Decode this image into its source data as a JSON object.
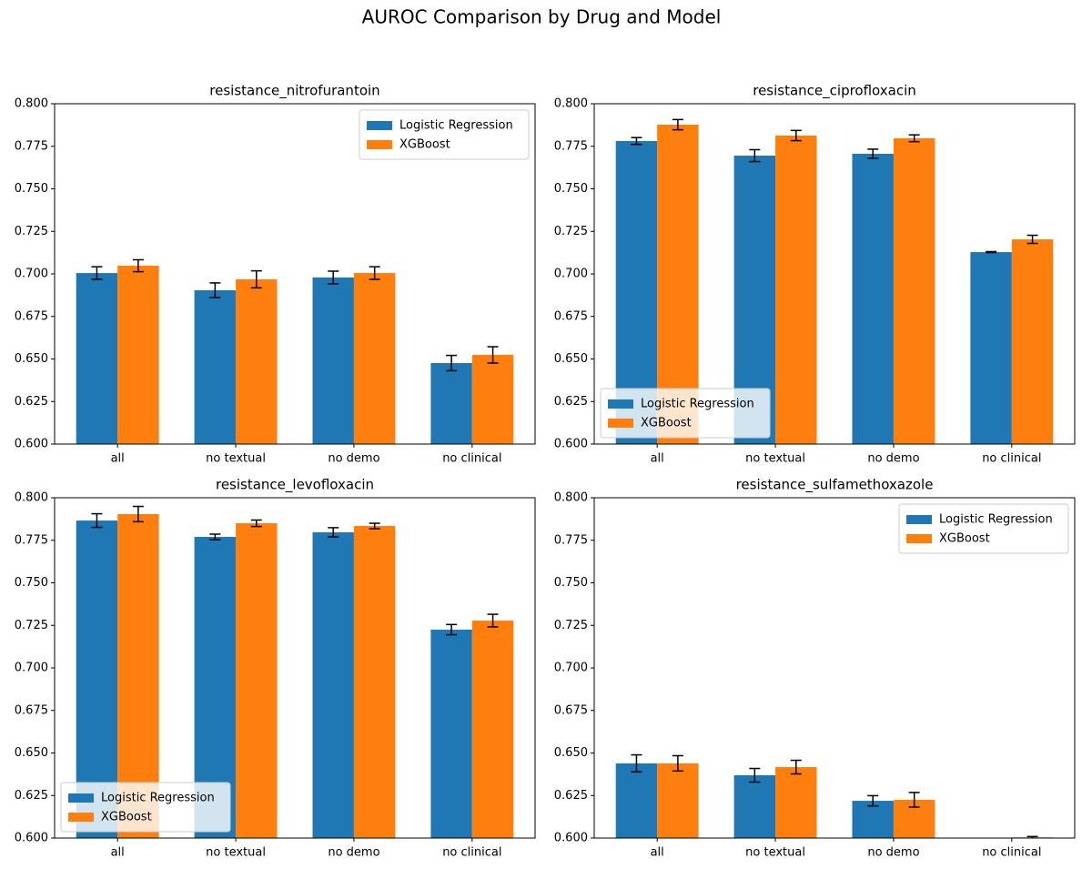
{
  "title": "AUROC Comparison by Drug and Model",
  "chart_data": [
    {
      "type": "bar",
      "title": "resistance_nitrofurantoin",
      "categories": [
        "all",
        "no textual",
        "no demo",
        "no clinical"
      ],
      "series": [
        {
          "name": "Logistic Regression",
          "color": "#1f77b4",
          "values": [
            0.7005,
            0.6904,
            0.6979,
            0.6476
          ],
          "errors": [
            0.0037,
            0.0043,
            0.0037,
            0.0045
          ]
        },
        {
          "name": "XGBoost",
          "color": "#ff7f0e",
          "values": [
            0.7048,
            0.6968,
            0.7005,
            0.6524
          ],
          "errors": [
            0.0035,
            0.005,
            0.0037,
            0.0048
          ]
        }
      ],
      "ylim": [
        0.6,
        0.8
      ],
      "yticks": [
        {
          "value": 0.6,
          "label": "0.600"
        },
        {
          "value": 0.625,
          "label": "0.625"
        },
        {
          "value": 0.65,
          "label": "0.650"
        },
        {
          "value": 0.675,
          "label": "0.675"
        },
        {
          "value": 0.7,
          "label": "0.700"
        },
        {
          "value": 0.725,
          "label": "0.725"
        },
        {
          "value": 0.75,
          "label": "0.750"
        },
        {
          "value": 0.775,
          "label": "0.775"
        },
        {
          "value": 0.8,
          "label": "0.800"
        }
      ],
      "legend": "upper right"
    },
    {
      "type": "bar",
      "title": "resistance_ciprofloxacin",
      "categories": [
        "all",
        "no textual",
        "no demo",
        "no clinical"
      ],
      "series": [
        {
          "name": "Logistic Regression",
          "color": "#1f77b4",
          "values": [
            0.7781,
            0.7695,
            0.7706,
            0.7128
          ],
          "errors": [
            0.002,
            0.0035,
            0.0027,
            0.0003
          ]
        },
        {
          "name": "XGBoost",
          "color": "#ff7f0e",
          "values": [
            0.7877,
            0.7813,
            0.7797,
            0.7203
          ],
          "errors": [
            0.003,
            0.003,
            0.002,
            0.0024
          ]
        }
      ],
      "ylim": [
        0.6,
        0.8
      ],
      "yticks": [
        {
          "value": 0.6,
          "label": "0.600"
        },
        {
          "value": 0.625,
          "label": "0.625"
        },
        {
          "value": 0.65,
          "label": "0.650"
        },
        {
          "value": 0.675,
          "label": "0.675"
        },
        {
          "value": 0.7,
          "label": "0.700"
        },
        {
          "value": 0.725,
          "label": "0.725"
        },
        {
          "value": 0.75,
          "label": "0.750"
        },
        {
          "value": 0.775,
          "label": "0.775"
        },
        {
          "value": 0.8,
          "label": "0.800"
        }
      ],
      "legend": "lower left"
    },
    {
      "type": "bar",
      "title": "resistance_levofloxacin",
      "categories": [
        "all",
        "no textual",
        "no demo",
        "no clinical"
      ],
      "series": [
        {
          "name": "Logistic Regression",
          "color": "#1f77b4",
          "values": [
            0.7866,
            0.777,
            0.7797,
            0.7225
          ],
          "errors": [
            0.004,
            0.0016,
            0.0027,
            0.003
          ]
        },
        {
          "name": "XGBoost",
          "color": "#ff7f0e",
          "values": [
            0.7904,
            0.785,
            0.7834,
            0.7278
          ],
          "errors": [
            0.0045,
            0.0019,
            0.0016,
            0.0037
          ]
        }
      ],
      "ylim": [
        0.6,
        0.8
      ],
      "yticks": [
        {
          "value": 0.6,
          "label": "0.600"
        },
        {
          "value": 0.625,
          "label": "0.625"
        },
        {
          "value": 0.65,
          "label": "0.650"
        },
        {
          "value": 0.675,
          "label": "0.675"
        },
        {
          "value": 0.7,
          "label": "0.700"
        },
        {
          "value": 0.725,
          "label": "0.725"
        },
        {
          "value": 0.75,
          "label": "0.750"
        },
        {
          "value": 0.775,
          "label": "0.775"
        },
        {
          "value": 0.8,
          "label": "0.800"
        }
      ],
      "legend": "lower left"
    },
    {
      "type": "bar",
      "title": "resistance_sulfamethoxazole",
      "categories": [
        "all",
        "no textual",
        "no demo",
        "no clinical"
      ],
      "series": [
        {
          "name": "Logistic Regression",
          "color": "#1f77b4",
          "values": [
            0.6439,
            0.6369,
            0.6219,
            0.595
          ],
          "errors": [
            0.005,
            0.004,
            0.003,
            0.002
          ]
        },
        {
          "name": "XGBoost",
          "color": "#ff7f0e",
          "values": [
            0.6439,
            0.6417,
            0.6225,
            0.6004
          ],
          "errors": [
            0.0045,
            0.004,
            0.0043,
            0.0005
          ]
        }
      ],
      "ylim": [
        0.6,
        0.8
      ],
      "yticks": [
        {
          "value": 0.6,
          "label": "0.600"
        },
        {
          "value": 0.625,
          "label": "0.625"
        },
        {
          "value": 0.65,
          "label": "0.650"
        },
        {
          "value": 0.675,
          "label": "0.675"
        },
        {
          "value": 0.7,
          "label": "0.700"
        },
        {
          "value": 0.725,
          "label": "0.725"
        },
        {
          "value": 0.75,
          "label": "0.750"
        },
        {
          "value": 0.775,
          "label": "0.775"
        },
        {
          "value": 0.8,
          "label": "0.800"
        }
      ],
      "legend": "upper right"
    }
  ]
}
